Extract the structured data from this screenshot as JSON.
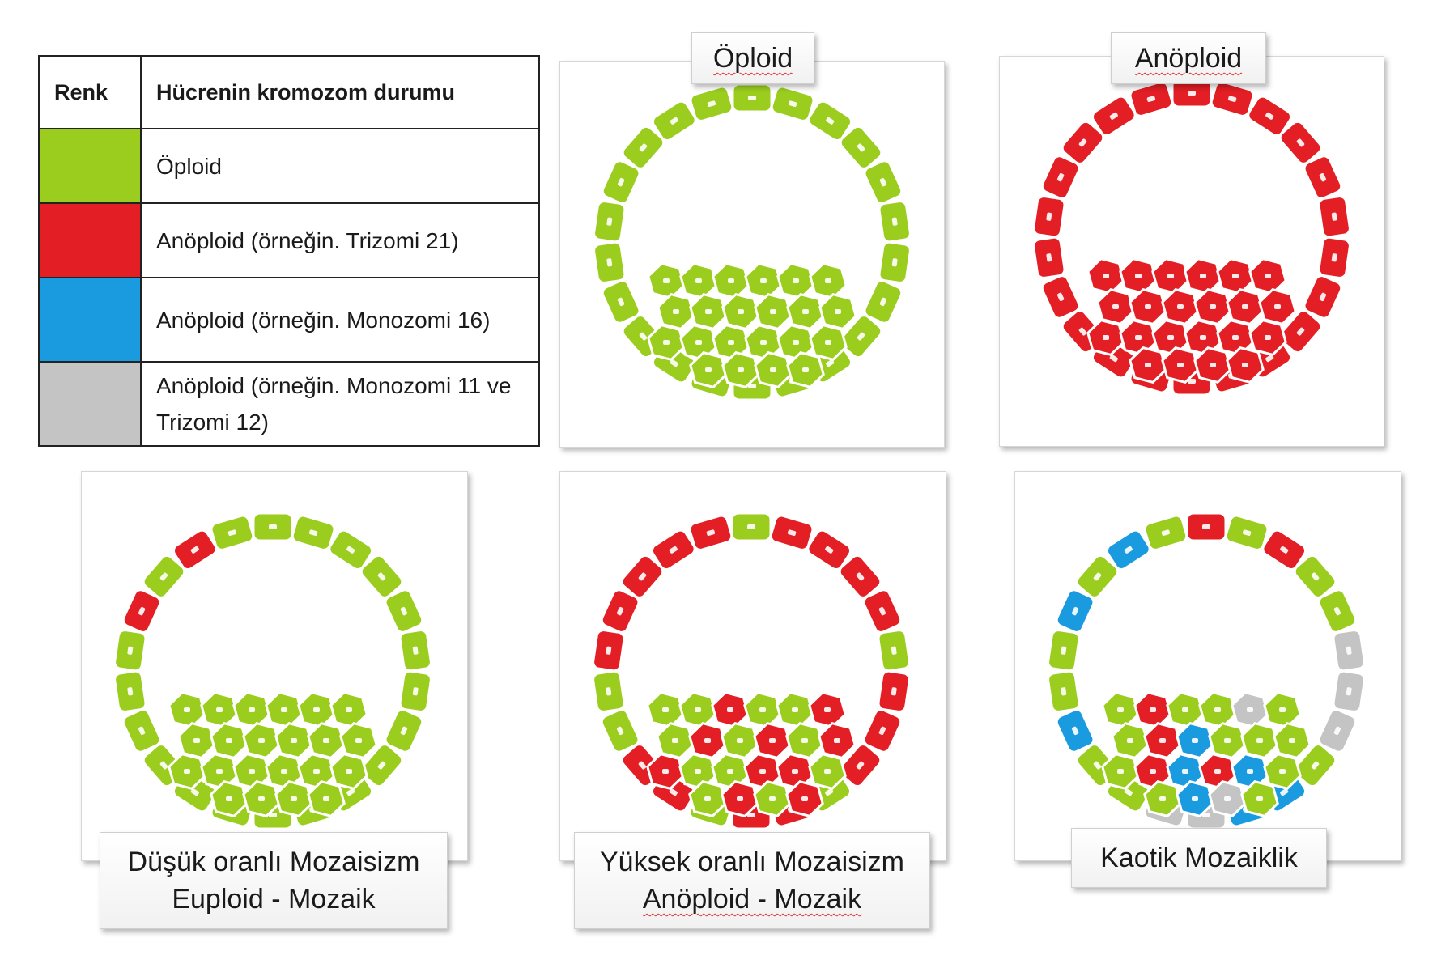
{
  "legend": {
    "header_color": "Renk",
    "header_status": "Hücrenin kromozom durumu",
    "rows": [
      {
        "color": "#9acd1e",
        "text": "Öploid"
      },
      {
        "color": "#e31e24",
        "text": "Anöploid (örneğin. Trizomi 21)"
      },
      {
        "color": "#1a9be0",
        "text": "Anöploid (örneğin.  Monozomi 16)"
      },
      {
        "color": "#c4c4c4",
        "text": "Anöploid (örneğin. Monozomi 11 ve  Trizomi 12)"
      }
    ]
  },
  "panels": {
    "euploid": {
      "label": "Öploid"
    },
    "aneuploid": {
      "label": "Anöploid"
    },
    "low_mosaic": {
      "label_line1": "Düşük oranlı Mozaisizm",
      "label_line2": "Euploid - Mozaik"
    },
    "high_mosaic": {
      "label_line1": "Yüksek oranlı Mozaisizm",
      "label_line2": "Anöploid - Mozaik"
    },
    "chaotic": {
      "label": "Kaotik Mozaiklik"
    }
  },
  "colors": {
    "green": "#9acd1e",
    "red": "#e31e24",
    "blue": "#1a9be0",
    "gray": "#c4c4c4"
  }
}
